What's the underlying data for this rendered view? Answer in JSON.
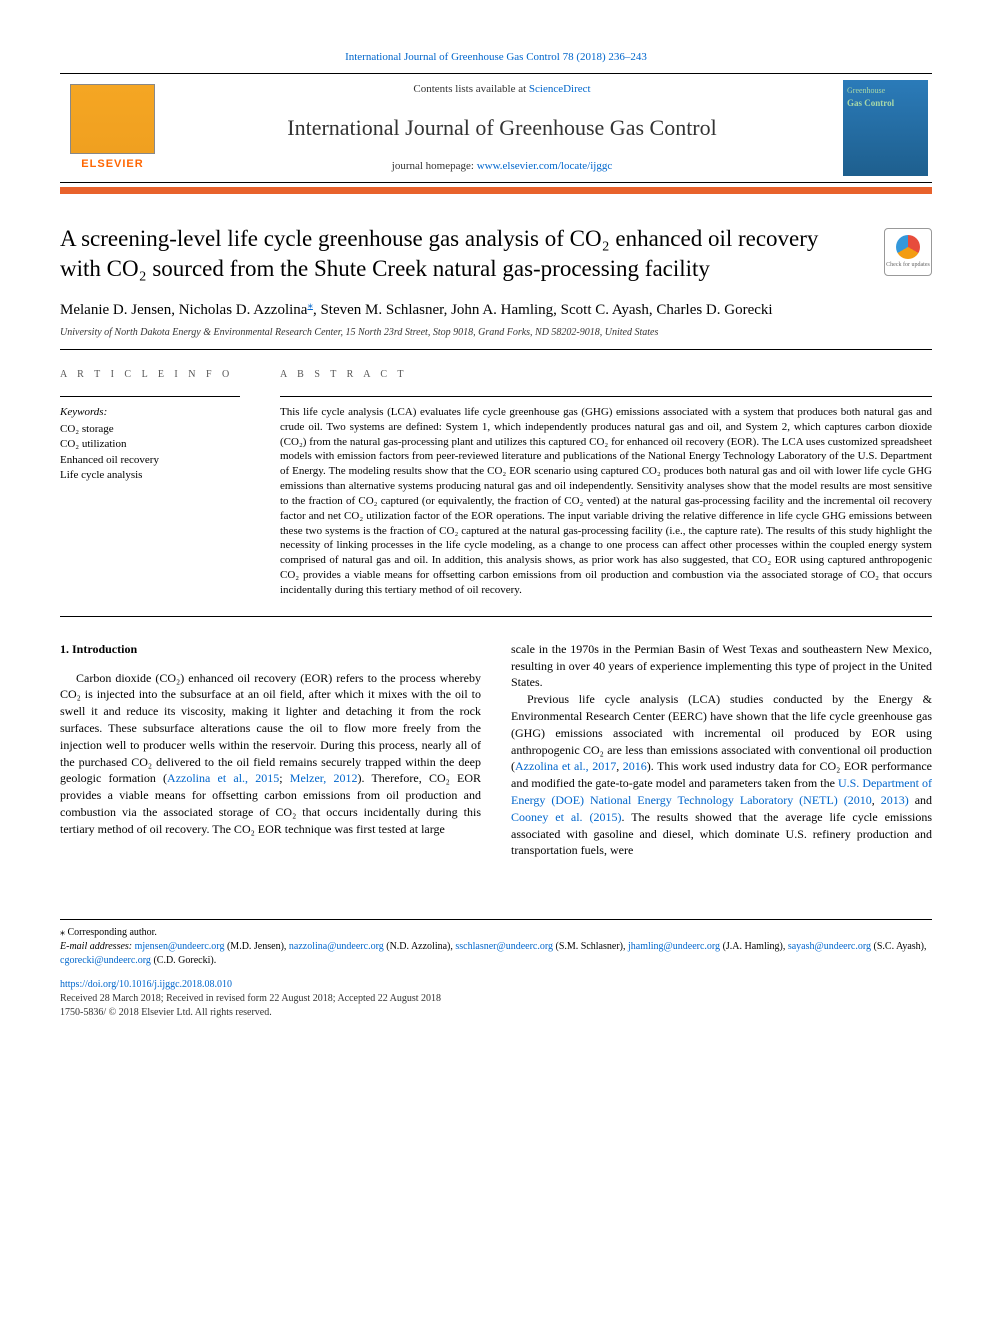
{
  "top_link": "International Journal of Greenhouse Gas Control 78 (2018) 236–243",
  "header": {
    "contents_prefix": "Contents lists available at ",
    "contents_link": "ScienceDirect",
    "journal_title": "International Journal of Greenhouse Gas Control",
    "homepage_prefix": "journal homepage: ",
    "homepage_url": "www.elsevier.com/locate/ijggc",
    "elsevier": "ELSEVIER",
    "cover_line1": "Greenhouse",
    "cover_line2": "Gas Control"
  },
  "check_updates": "Check for updates",
  "article": {
    "title": "A screening-level life cycle greenhouse gas analysis of CO₂ enhanced oil recovery with CO₂ sourced from the Shute Creek natural gas-processing facility",
    "authors": "Melanie D. Jensen, Nicholas D. Azzolina",
    "authors_after_corr": ", Steven M. Schlasner, John A. Hamling, Scott C. Ayash, Charles D. Gorecki",
    "corr_symbol": "⁎",
    "affiliation": "University of North Dakota Energy & Environmental Research Center, 15 North 23rd Street, Stop 9018, Grand Forks, ND 58202-9018, United States"
  },
  "labels": {
    "article_info": "A R T I C L E  I N F O",
    "abstract": "A B S T R A C T",
    "keywords": "Keywords:"
  },
  "keywords": [
    "CO₂ storage",
    "CO₂ utilization",
    "Enhanced oil recovery",
    "Life cycle analysis"
  ],
  "abstract": "This life cycle analysis (LCA) evaluates life cycle greenhouse gas (GHG) emissions associated with a system that produces both natural gas and crude oil. Two systems are defined: System 1, which independently produces natural gas and oil, and System 2, which captures carbon dioxide (CO₂) from the natural gas-processing plant and utilizes this captured CO₂ for enhanced oil recovery (EOR). The LCA uses customized spreadsheet models with emission factors from peer-reviewed literature and publications of the National Energy Technology Laboratory of the U.S. Department of Energy. The modeling results show that the CO₂ EOR scenario using captured CO₂ produces both natural gas and oil with lower life cycle GHG emissions than alternative systems producing natural gas and oil independently. Sensitivity analyses show that the model results are most sensitive to the fraction of CO₂ captured (or equivalently, the fraction of CO₂ vented) at the natural gas-processing facility and the incremental oil recovery factor and net CO₂ utilization factor of the EOR operations. The input variable driving the relative difference in life cycle GHG emissions between these two systems is the fraction of CO₂ captured at the natural gas-processing facility (i.e., the capture rate). The results of this study highlight the necessity of linking processes in the life cycle modeling, as a change to one process can affect other processes within the coupled energy system comprised of natural gas and oil. In addition, this analysis shows, as prior work has also suggested, that CO₂ EOR using captured anthropogenic CO₂ provides a viable means for offsetting carbon emissions from oil production and combustion via the associated storage of CO₂ that occurs incidentally during this tertiary method of oil recovery.",
  "body": {
    "heading": "1. Introduction",
    "left_p1a": "Carbon dioxide (CO₂) enhanced oil recovery (EOR) refers to the process whereby CO₂ is injected into the subsurface at an oil field, after which it mixes with the oil to swell it and reduce its viscosity, making it lighter and detaching it from the rock surfaces. These subsurface alterations cause the oil to flow more freely from the injection well to producer wells within the reservoir. During this process, nearly all of the purchased CO₂ delivered to the oil field remains securely trapped within the deep geologic formation (",
    "left_link1": "Azzolina et al., 2015",
    "left_sep1": "; ",
    "left_link2": "Melzer, 2012",
    "left_p1b": "). Therefore, CO₂ EOR provides a viable means for offsetting carbon emissions from oil production and combustion via the associated storage of CO₂ that occurs incidentally during this tertiary method of oil recovery. The CO₂ EOR technique was first tested at large",
    "right_p1": "scale in the 1970s in the Permian Basin of West Texas and southeastern New Mexico, resulting in over 40 years of experience implementing this type of project in the United States.",
    "right_p2a": "Previous life cycle analysis (LCA) studies conducted by the Energy & Environmental Research Center (EERC) have shown that the life cycle greenhouse gas (GHG) emissions associated with incremental oil produced by EOR using anthropogenic CO₂ are less than emissions associated with conventional oil production (",
    "right_link1": "Azzolina et al., 2017",
    "right_sep1": ", ",
    "right_link2": "2016",
    "right_p2b": "). This work used industry data for CO₂ EOR performance and modified the gate-to-gate model and parameters taken from the ",
    "right_link3": "U.S. Department of Energy (DOE) National Energy Technology Laboratory (NETL) (2010",
    "right_sep2": ", ",
    "right_link4": "2013)",
    "right_sep3": " and ",
    "right_link5": "Cooney et al. (2015)",
    "right_p2c": ". The results showed that the average life cycle emissions associated with gasoline and diesel, which dominate U.S. refinery production and transportation fuels, were"
  },
  "footnotes": {
    "corr": "⁎ Corresponding author.",
    "email_label": "E-mail addresses: ",
    "emails": [
      {
        "addr": "mjensen@undeerc.org",
        "name": " (M.D. Jensen), "
      },
      {
        "addr": "nazzolina@undeerc.org",
        "name": " (N.D. Azzolina), "
      },
      {
        "addr": "sschlasner@undeerc.org",
        "name": " (S.M. Schlasner), "
      },
      {
        "addr": "jhamling@undeerc.org",
        "name": " (J.A. Hamling), "
      },
      {
        "addr": "sayash@undeerc.org",
        "name": " (S.C. Ayash), "
      },
      {
        "addr": "cgorecki@undeerc.org",
        "name": " (C.D. Gorecki)."
      }
    ],
    "doi": "https://doi.org/10.1016/j.ijggc.2018.08.010",
    "received": "Received 28 March 2018; Received in revised form 22 August 2018; Accepted 22 August 2018",
    "copyright": "1750-5836/ © 2018 Elsevier Ltd. All rights reserved."
  }
}
